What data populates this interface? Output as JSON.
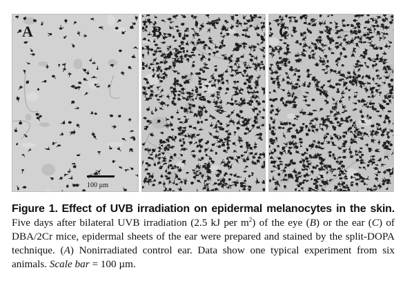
{
  "figure": {
    "panels": [
      {
        "id": "A",
        "letter": "A",
        "background": "#d2d2d2",
        "cell_count": 120
      },
      {
        "id": "B",
        "letter": "B",
        "background": "#c8c8c8",
        "cell_count": 900
      },
      {
        "id": "C",
        "letter": "C",
        "background": "#c6c6c6",
        "cell_count": 1000
      }
    ],
    "scale_bar_label": "100 µm"
  },
  "caption": {
    "label": "Figure 1.",
    "title": "Effect of UVB irradiation on epidermal melanocytes in the skin.",
    "t1": "Five days after bilateral UVB irradiation (2.5 kJ per m",
    "t1_sup": "2",
    "t2": ") of the eye (",
    "i1": "B",
    "t3": ") or the ear (",
    "i2": "C",
    "t4": ") of DBA/2Cr mice, epidermal sheets of the ear were prepared and stained by the split-DOPA technique. (",
    "i3": "A",
    "t5": ") Nonirradiated control ear. Data show one typical experiment from six animals. ",
    "i4": "Scale bar",
    "t6": " = 100 µm."
  }
}
